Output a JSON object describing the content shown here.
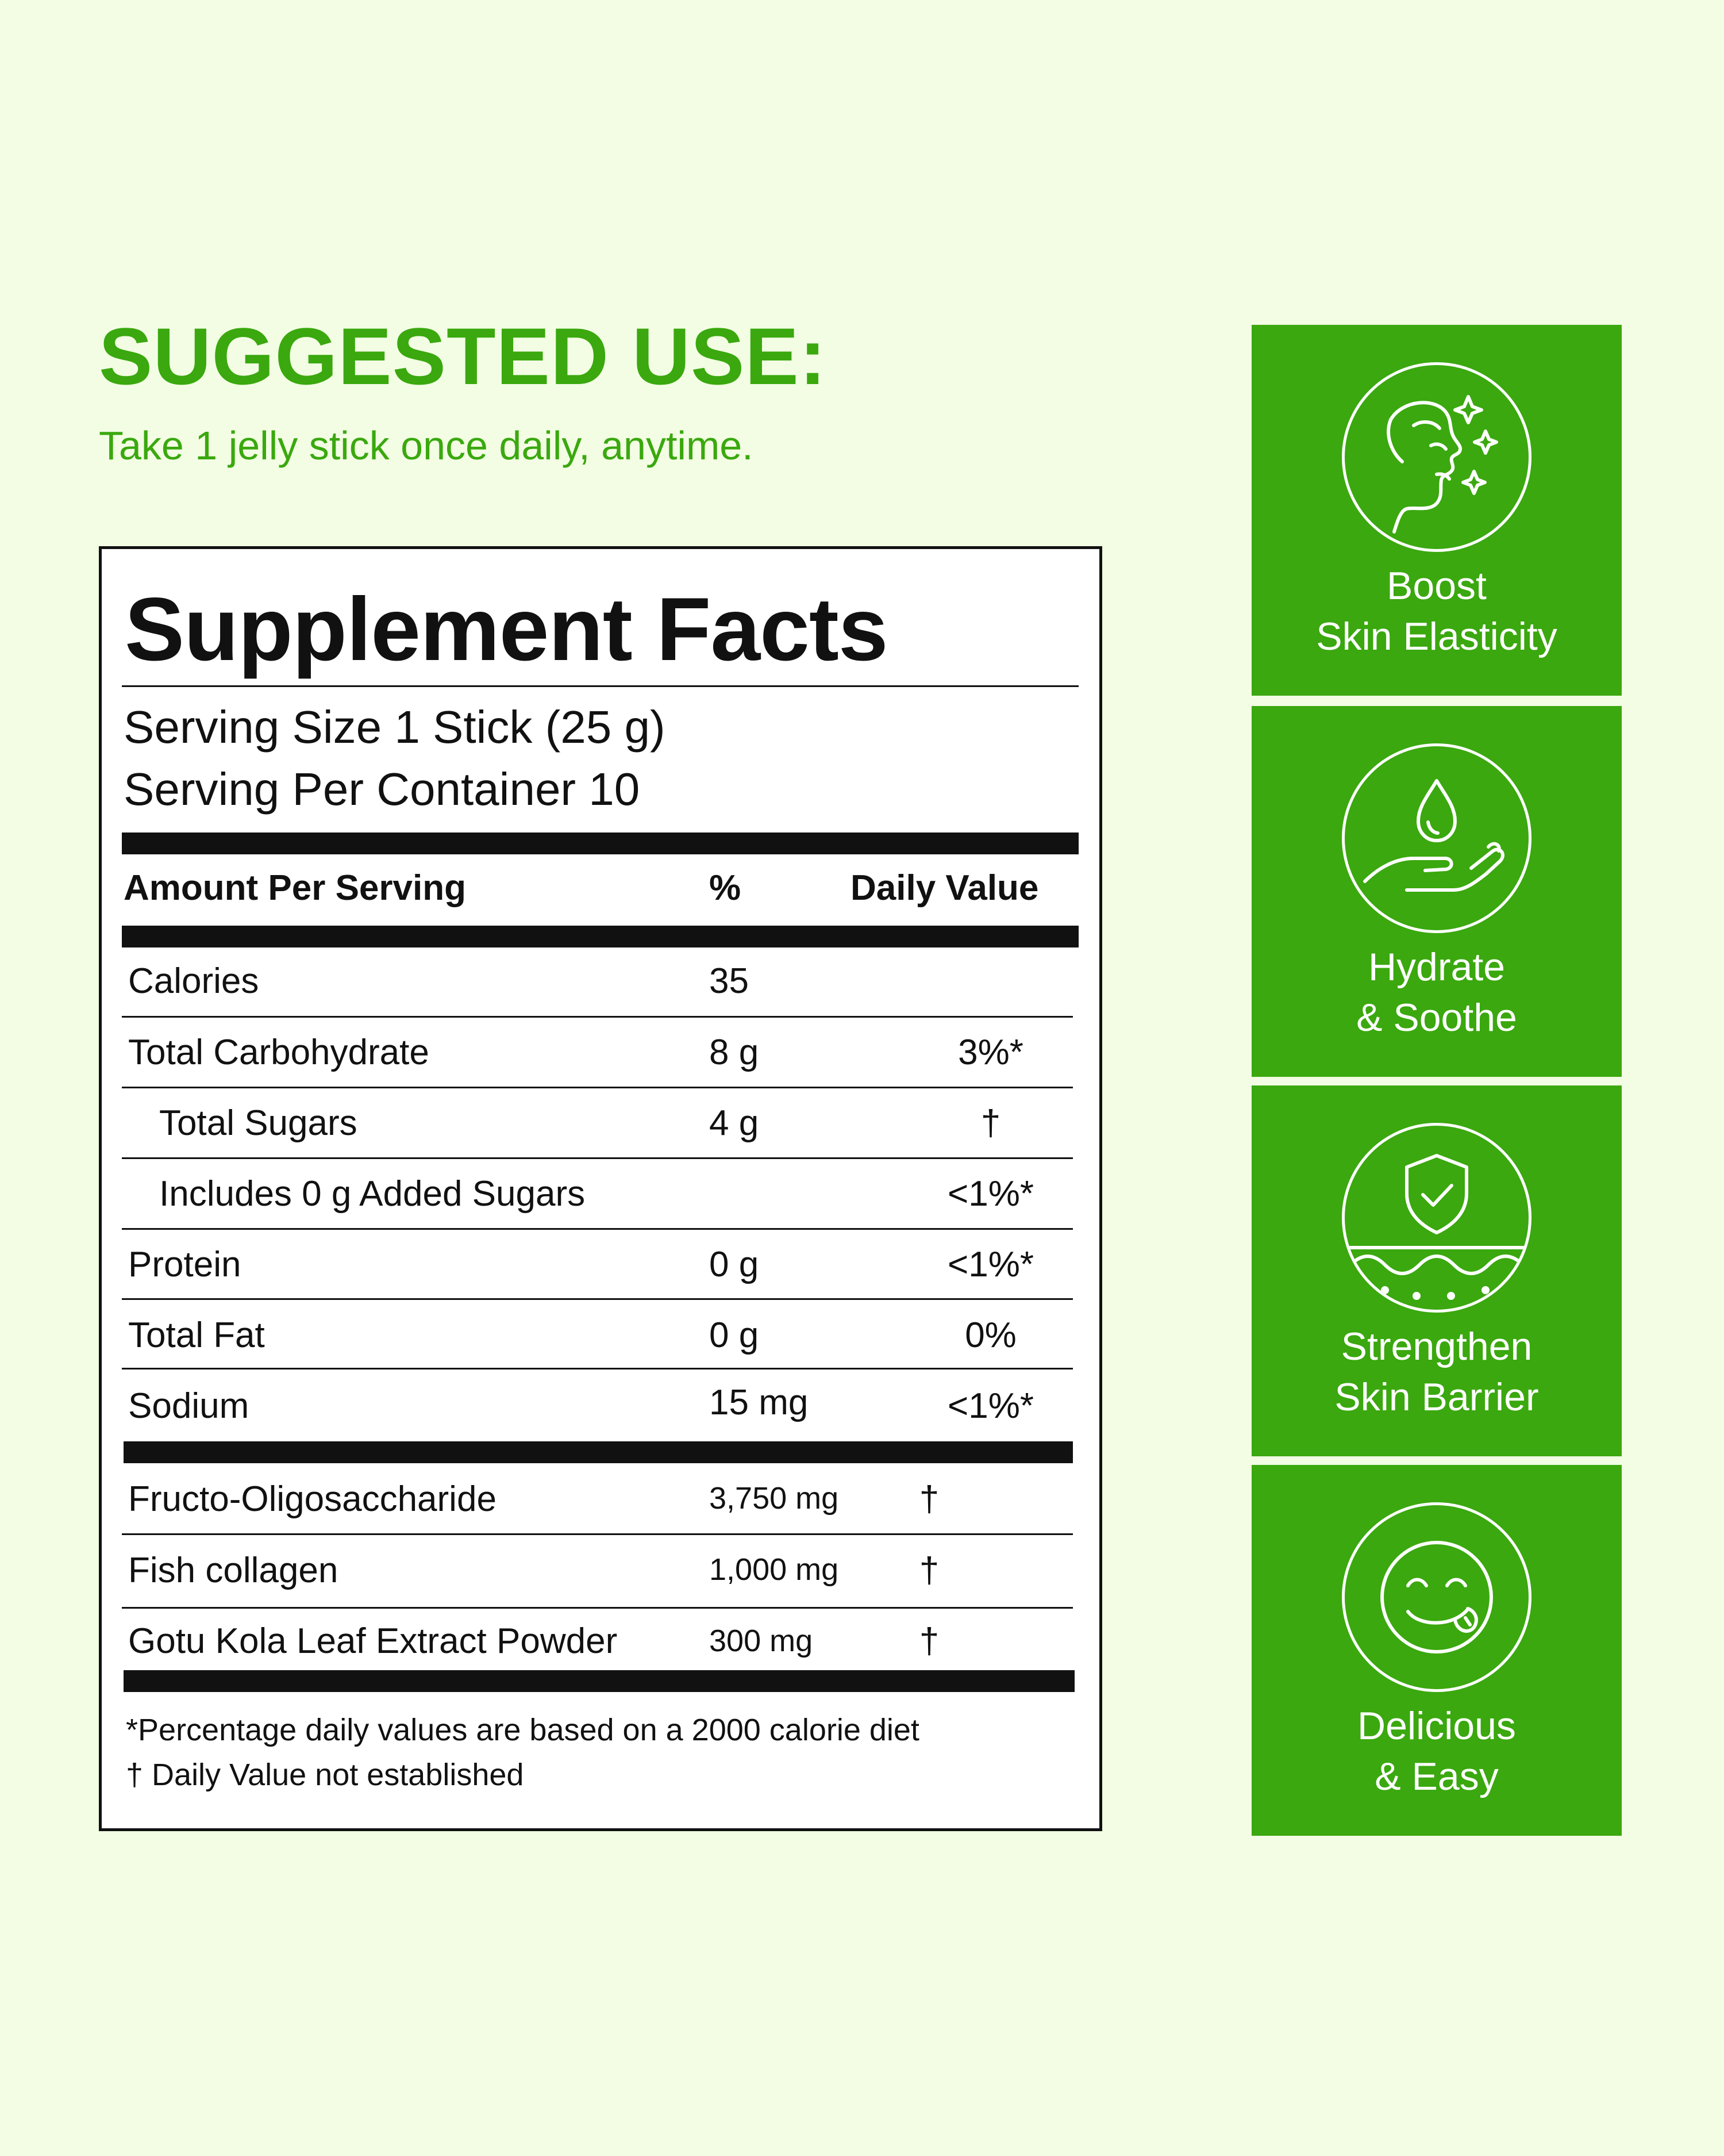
{
  "suggested_use": {
    "title": "SUGGESTED USE:",
    "text": "Take 1 jelly stick once daily, anytime."
  },
  "facts": {
    "title": "Supplement Facts",
    "serving_size": "Serving Size 1 Stick (25 g)",
    "servings_per_container": "Serving Per Container 10",
    "headers": {
      "amount": "Amount Per Serving",
      "percent": "%",
      "daily_value": "Daily Value"
    },
    "nutrients": [
      {
        "name": "Calories",
        "amount": "35",
        "dv": ""
      },
      {
        "name": "Total Carbohydrate",
        "amount": "8 g",
        "dv": "3%*"
      },
      {
        "name": "Total Sugars",
        "amount": "4 g",
        "dv": "†"
      },
      {
        "name": "Includes 0 g Added Sugars",
        "amount": "",
        "dv": "<1%*"
      },
      {
        "name": "Protein",
        "amount": "0 g",
        "dv": "<1%*"
      },
      {
        "name": "Total Fat",
        "amount": "0 g",
        "dv": "0%"
      },
      {
        "name": "Sodium",
        "amount": "15 mg",
        "dv": "<1%*"
      }
    ],
    "ingredients": [
      {
        "name": "Fructo-Oligosaccharide",
        "amount": "3,750 mg",
        "dv": "†"
      },
      {
        "name": "Fish collagen",
        "amount": "1,000 mg",
        "dv": "†"
      },
      {
        "name": "Gotu Kola Leaf Extract Powder",
        "amount": "300 mg",
        "dv": "†"
      }
    ],
    "footnotes": [
      "*Percentage daily values are based on a 2000 calorie diet",
      "† Daily Value not established"
    ]
  },
  "benefits": [
    {
      "icon": "face-sparkle-icon",
      "line1": "Boost",
      "line2": "Skin Elasticity"
    },
    {
      "icon": "droplet-hand-icon",
      "line1": "Hydrate",
      "line2": "& Soothe"
    },
    {
      "icon": "shield-check-icon",
      "line1": "Strengthen",
      "line2": "Skin Barrier"
    },
    {
      "icon": "smiley-tongue-icon",
      "line1": "Delicious",
      "line2": "& Easy"
    }
  ],
  "colors": {
    "background": "#f2fde3",
    "accent_green": "#3aa80e",
    "text": "#111111"
  }
}
